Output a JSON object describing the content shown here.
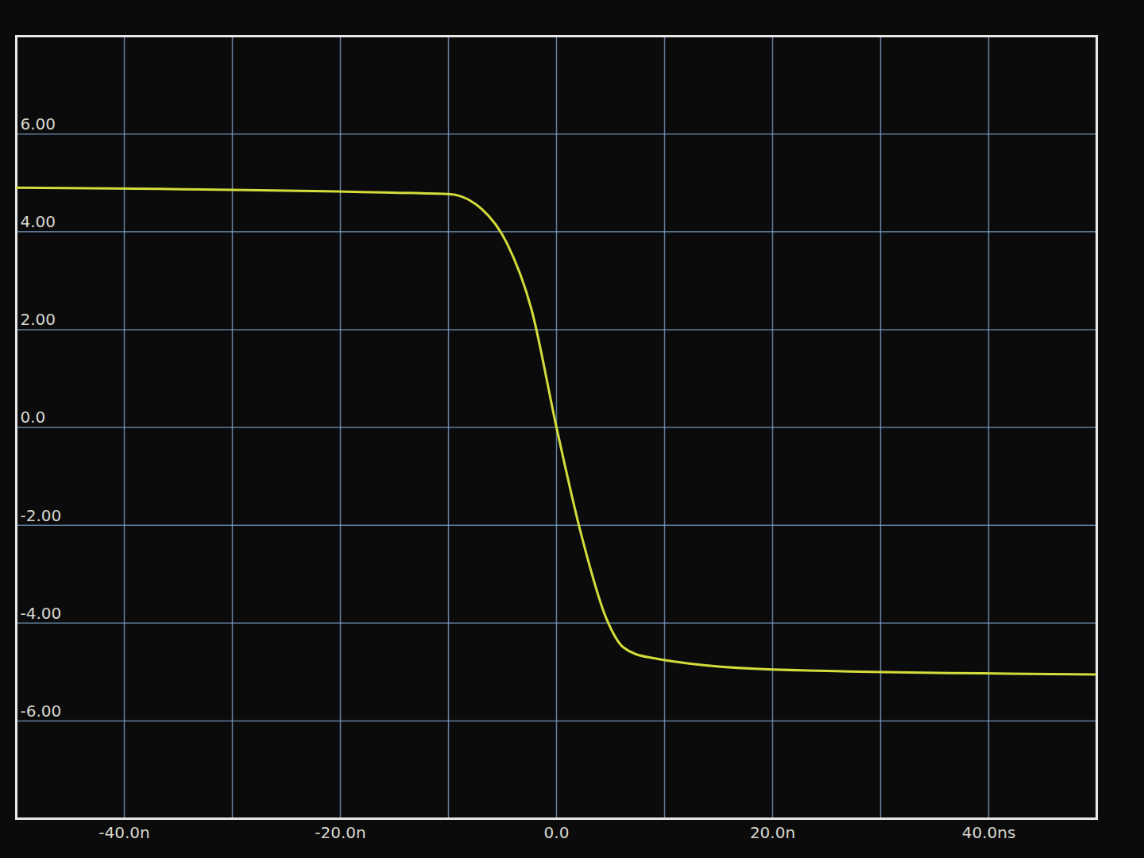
{
  "chart_data": {
    "type": "line",
    "x": [
      -50,
      -10,
      -6.9,
      -4.6,
      -2.3,
      0,
      2.3,
      4.6,
      6.2,
      8.5,
      20,
      50
    ],
    "values": [
      4.9,
      4.77,
      4.46,
      3.77,
      2.4,
      0,
      -2.2,
      -3.9,
      -4.5,
      -4.7,
      -4.95,
      -5.05
    ],
    "color": "#d4dc3c",
    "xlim": [
      -50,
      50
    ],
    "ylim": [
      -8,
      8
    ],
    "xticks": [
      {
        "value": -40,
        "label": "-40.0n"
      },
      {
        "value": -20,
        "label": "-20.0n"
      },
      {
        "value": 0,
        "label": "0.0"
      },
      {
        "value": 20,
        "label": "20.0n"
      },
      {
        "value": 40,
        "label": "40.0ns"
      }
    ],
    "yticks": [
      {
        "value": 6,
        "label": "6.00"
      },
      {
        "value": 4,
        "label": "4.00"
      },
      {
        "value": 2,
        "label": "2.00"
      },
      {
        "value": 0,
        "label": "0.0"
      },
      {
        "value": -2,
        "label": "-2.00"
      },
      {
        "value": -4,
        "label": "-4.00"
      },
      {
        "value": -6,
        "label": "-6.00"
      }
    ],
    "grid": true
  }
}
